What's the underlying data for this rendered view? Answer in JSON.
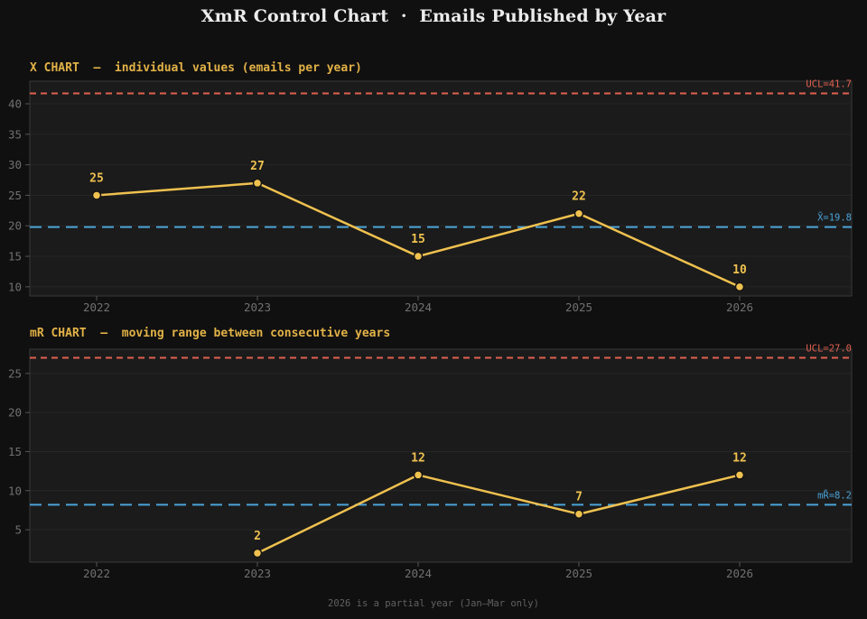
{
  "page": {
    "title": "XmR Control Chart  ·  Emails Published by Year",
    "footer": "2026 is a partial year (Jan—Mar only)"
  },
  "colors": {
    "background": "#101010",
    "panel_background": "#1b1b1b",
    "grid": "#262626",
    "spine": "#3a3a3a",
    "tick_mark": "#565656",
    "tick_label": "#707070",
    "gold_series": "#efc14f",
    "gold_title": "#e2b247",
    "red_limit": "#e0604f",
    "blue_center": "#4ba3d8",
    "title_text": "#ececec",
    "footer_text": "#616161"
  },
  "chart_data": [
    {
      "type": "line",
      "name": "x-chart",
      "title": "X CHART  —  individual values (emails per year)",
      "x": [
        "2022",
        "2023",
        "2024",
        "2025",
        "2026"
      ],
      "values": [
        25,
        27,
        15,
        22,
        10
      ],
      "point_labels": [
        "25",
        "27",
        "15",
        "22",
        "10"
      ],
      "ucl": 41.7,
      "ucl_label": "UCL=41.7",
      "center": 19.8,
      "center_label": "X̄=19.8",
      "yticks": [
        10,
        15,
        20,
        25,
        30,
        35,
        40
      ],
      "ylim": [
        8.5,
        43.7
      ],
      "grid": true,
      "legend": "none",
      "series_color": "#efc14f",
      "ucl_color": "#e0604f",
      "center_color": "#4ba3d8"
    },
    {
      "type": "line",
      "name": "mr-chart",
      "title": "mR CHART  —  moving range between consecutive years",
      "x": [
        "2022",
        "2023",
        "2024",
        "2025",
        "2026"
      ],
      "values": [
        null,
        2,
        12,
        7,
        12
      ],
      "point_labels": [
        "",
        "2",
        "12",
        "7",
        "12"
      ],
      "ucl": 27.0,
      "ucl_label": "UCL=27.0",
      "center": 8.2,
      "center_label": "mR̄=8.2",
      "yticks": [
        5,
        10,
        15,
        20,
        25
      ],
      "ylim": [
        0.85,
        28.1
      ],
      "grid": true,
      "legend": "none",
      "series_color": "#efc14f",
      "ucl_color": "#e0604f",
      "center_color": "#4ba3d8"
    }
  ]
}
